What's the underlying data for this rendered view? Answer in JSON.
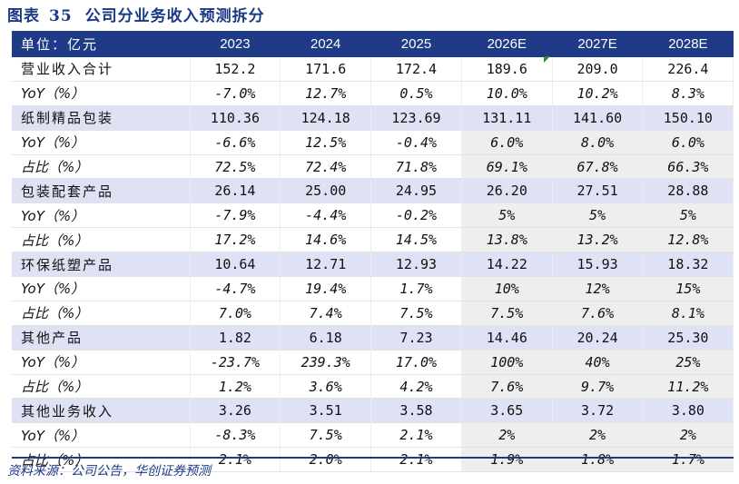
{
  "title": {
    "label": "图表",
    "number": "35",
    "text": "公司分业务收入预测拆分"
  },
  "header": [
    "单位：亿元",
    "2023",
    "2024",
    "2025",
    "2026E",
    "2027E",
    "2028E"
  ],
  "rows": [
    {
      "label": "营业收入合计",
      "values": [
        "152.2",
        "171.6",
        "172.4",
        "189.6",
        "209.0",
        "226.4"
      ]
    },
    {
      "label": "YoY（%）",
      "values": [
        "-7.0%",
        "12.7%",
        "0.5%",
        "10.0%",
        "10.2%",
        "8.3%"
      ]
    },
    {
      "label": "纸制精品包装",
      "values": [
        "110.36",
        "124.18",
        "123.69",
        "131.11",
        "141.60",
        "150.10"
      ]
    },
    {
      "label": "YoY（%）",
      "values": [
        "-6.6%",
        "12.5%",
        "-0.4%",
        "6.0%",
        "8.0%",
        "6.0%"
      ]
    },
    {
      "label": "占比（%）",
      "values": [
        "72.5%",
        "72.4%",
        "71.8%",
        "69.1%",
        "67.8%",
        "66.3%"
      ]
    },
    {
      "label": "包装配套产品",
      "values": [
        "26.14",
        "25.00",
        "24.95",
        "26.20",
        "27.51",
        "28.88"
      ]
    },
    {
      "label": "YoY（%）",
      "values": [
        "-7.9%",
        "-4.4%",
        "-0.2%",
        "5%",
        "5%",
        "5%"
      ]
    },
    {
      "label": "占比（%）",
      "values": [
        "17.2%",
        "14.6%",
        "14.5%",
        "13.8%",
        "13.2%",
        "12.8%"
      ]
    },
    {
      "label": "环保纸塑产品",
      "values": [
        "10.64",
        "12.71",
        "12.93",
        "14.22",
        "15.93",
        "18.32"
      ]
    },
    {
      "label": "YoY（%）",
      "values": [
        "-4.7%",
        "19.4%",
        "1.7%",
        "10%",
        "12%",
        "15%"
      ]
    },
    {
      "label": "占比（%）",
      "values": [
        "7.0%",
        "7.4%",
        "7.5%",
        "7.5%",
        "7.6%",
        "8.1%"
      ]
    },
    {
      "label": "其他产品",
      "values": [
        "1.82",
        "6.18",
        "7.23",
        "14.46",
        "20.24",
        "25.30"
      ]
    },
    {
      "label": "YoY（%）",
      "values": [
        "-23.7%",
        "239.3%",
        "17.0%",
        "100%",
        "40%",
        "25%"
      ]
    },
    {
      "label": "占比（%）",
      "values": [
        "1.2%",
        "3.6%",
        "4.2%",
        "7.6%",
        "9.7%",
        "11.2%"
      ]
    },
    {
      "label": "其他业务收入",
      "values": [
        "3.26",
        "3.51",
        "3.58",
        "3.65",
        "3.72",
        "3.80"
      ]
    },
    {
      "label": "YoY（%）",
      "values": [
        "-8.3%",
        "7.5%",
        "2.1%",
        "2%",
        "2%",
        "2%"
      ]
    },
    {
      "label": "占比（%）",
      "values": [
        "2.1%",
        "2.0%",
        "2.1%",
        "1.9%",
        "1.8%",
        "1.7%"
      ]
    }
  ],
  "source": "资料来源：公司公告，华创证券预测",
  "colors": {
    "header_bg": "#1f3a86",
    "category_bg": "#dfe2f5",
    "estimate_bg": "#eeeeee",
    "title": "#1a3a86"
  }
}
